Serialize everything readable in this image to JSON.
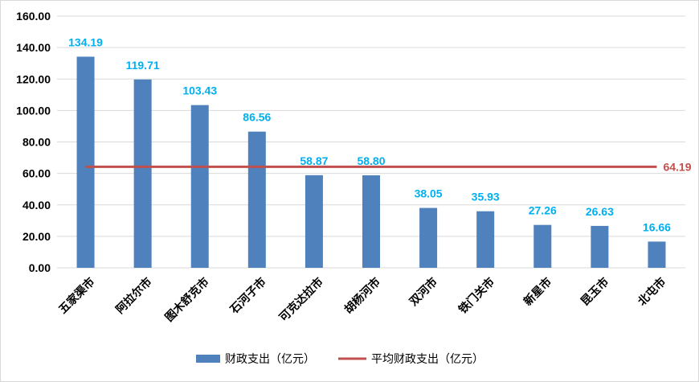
{
  "chart_data": {
    "type": "bar",
    "categories": [
      "五家渠市",
      "阿拉尔市",
      "图木舒克市",
      "石河子市",
      "可克达拉市",
      "胡杨河市",
      "双河市",
      "铁门关市",
      "新星市",
      "昆玉市",
      "北屯市"
    ],
    "series": [
      {
        "name": "财政支出（亿元）",
        "type": "bar",
        "color": "#4f81bd",
        "values": [
          134.19,
          119.71,
          103.43,
          86.56,
          58.87,
          58.8,
          38.05,
          35.93,
          27.26,
          26.63,
          16.66
        ],
        "value_labels": [
          "134.19",
          "119.71",
          "103.43",
          "86.56",
          "58.87",
          "58.80",
          "38.05",
          "35.93",
          "27.26",
          "26.63",
          "16.66"
        ],
        "label_color": "#00b0f0"
      },
      {
        "name": "平均财政支出（亿元）",
        "type": "line",
        "color": "#c0504d",
        "value": 64.19,
        "value_label": "64.19"
      }
    ],
    "y_ticks": [
      "0.00",
      "20.00",
      "40.00",
      "60.00",
      "80.00",
      "100.00",
      "120.00",
      "140.00",
      "160.00"
    ],
    "ylim": [
      0,
      160
    ],
    "grid": true,
    "legend_position": "bottom"
  }
}
